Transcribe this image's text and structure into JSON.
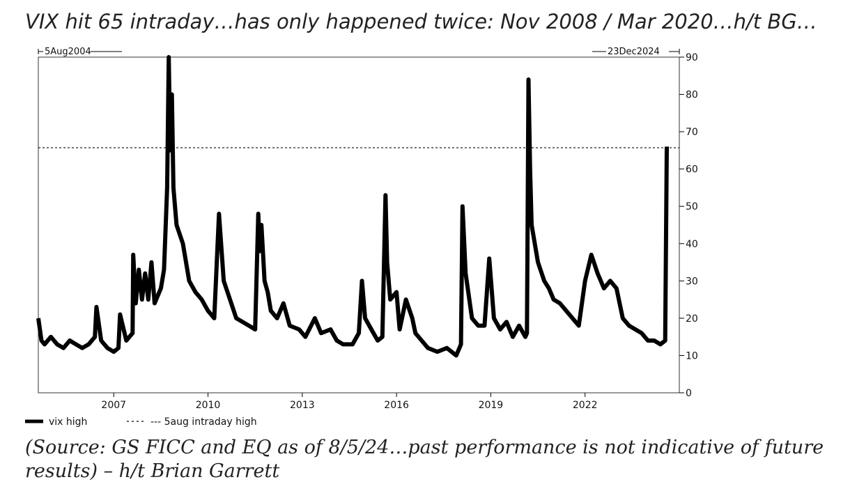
{
  "headline": "VIX hit 65 intraday…has only happened twice: Nov 2008 / Mar 2020…h/t BG…",
  "source_note": "(Source: GS FICC and EQ as of 8/5/24…past performance is not indicative of future results) – h/t Brian Garrett",
  "chart_data": {
    "type": "line",
    "title": "",
    "xlabel": "",
    "ylabel": "",
    "range_start_label": "5Aug2004",
    "range_end_label": "23Dec2024",
    "x_tick_labels": [
      "2007",
      "2010",
      "2013",
      "2016",
      "2019",
      "2022"
    ],
    "x_tick_positions": [
      2007,
      2010,
      2013,
      2016,
      2019,
      2022
    ],
    "xlim": [
      2004.6,
      2025.0
    ],
    "y_tick_labels": [
      "0",
      "10",
      "20",
      "30",
      "40",
      "50",
      "60",
      "70",
      "80",
      "90"
    ],
    "ylim": [
      0,
      90
    ],
    "y_axis_side": "right",
    "grid": false,
    "legend_position": "bottom-left",
    "reference_line": {
      "name": "5aug intraday high",
      "value": 65.7,
      "style": "dashed"
    },
    "series": [
      {
        "name": "vix high",
        "color": "#000000",
        "x": [
          2004.6,
          2004.7,
          2004.8,
          2005.0,
          2005.2,
          2005.4,
          2005.6,
          2005.8,
          2006.0,
          2006.2,
          2006.4,
          2006.45,
          2006.6,
          2006.8,
          2007.0,
          2007.15,
          2007.2,
          2007.4,
          2007.6,
          2007.62,
          2007.7,
          2007.8,
          2007.9,
          2008.0,
          2008.1,
          2008.2,
          2008.3,
          2008.5,
          2008.6,
          2008.7,
          2008.75,
          2008.8,
          2008.85,
          2008.9,
          2009.0,
          2009.2,
          2009.4,
          2009.6,
          2009.8,
          2010.0,
          2010.2,
          2010.35,
          2010.5,
          2010.7,
          2010.9,
          2011.1,
          2011.3,
          2011.5,
          2011.6,
          2011.65,
          2011.7,
          2011.8,
          2011.9,
          2012.0,
          2012.2,
          2012.4,
          2012.6,
          2012.9,
          2013.1,
          2013.4,
          2013.6,
          2013.9,
          2014.1,
          2014.3,
          2014.6,
          2014.8,
          2014.9,
          2015.0,
          2015.2,
          2015.4,
          2015.55,
          2015.65,
          2015.7,
          2015.8,
          2016.0,
          2016.1,
          2016.3,
          2016.5,
          2016.6,
          2016.8,
          2017.0,
          2017.3,
          2017.6,
          2017.9,
          2018.05,
          2018.1,
          2018.2,
          2018.4,
          2018.6,
          2018.8,
          2018.95,
          2019.1,
          2019.3,
          2019.5,
          2019.7,
          2019.9,
          2020.1,
          2020.15,
          2020.2,
          2020.25,
          2020.3,
          2020.5,
          2020.7,
          2020.85,
          2021.0,
          2021.2,
          2021.4,
          2021.6,
          2021.8,
          2022.0,
          2022.2,
          2022.4,
          2022.6,
          2022.8,
          2023.0,
          2023.2,
          2023.4,
          2023.6,
          2023.8,
          2024.0,
          2024.2,
          2024.4,
          2024.55,
          2024.6
        ],
        "values": [
          20,
          14,
          13,
          15,
          13,
          12,
          14,
          13,
          12,
          13,
          15,
          23,
          14,
          12,
          11,
          12,
          21,
          14,
          16,
          37,
          24,
          33,
          25,
          32,
          25,
          35,
          24,
          28,
          33,
          55,
          90,
          65,
          80,
          55,
          45,
          40,
          30,
          27,
          25,
          22,
          20,
          48,
          30,
          25,
          20,
          19,
          18,
          17,
          48,
          38,
          45,
          30,
          27,
          22,
          20,
          24,
          18,
          17,
          15,
          20,
          16,
          17,
          14,
          13,
          13,
          16,
          30,
          20,
          17,
          14,
          15,
          53,
          35,
          25,
          27,
          17,
          25,
          20,
          16,
          14,
          12,
          11,
          12,
          10,
          13,
          50,
          32,
          20,
          18,
          18,
          36,
          20,
          17,
          19,
          15,
          18,
          15,
          16,
          84,
          60,
          45,
          35,
          30,
          28,
          25,
          24,
          22,
          20,
          18,
          30,
          37,
          32,
          28,
          30,
          28,
          20,
          18,
          17,
          16,
          14,
          14,
          13,
          14,
          66
        ]
      }
    ]
  }
}
